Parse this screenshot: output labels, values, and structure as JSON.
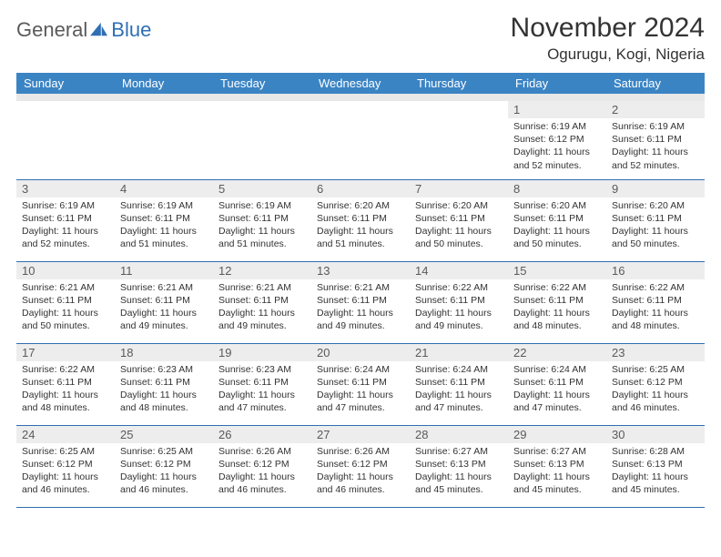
{
  "logo": {
    "word1": "General",
    "word2": "Blue",
    "accent_color": "#2f6fb3"
  },
  "title": "November 2024",
  "location": "Ogurugu, Kogi, Nigeria",
  "colors": {
    "header_bg": "#3b84c4",
    "header_text": "#ffffff",
    "grid_line": "#2f6fb3",
    "daynum_bg": "#ededed",
    "body_text": "#333333"
  },
  "weekdays": [
    "Sunday",
    "Monday",
    "Tuesday",
    "Wednesday",
    "Thursday",
    "Friday",
    "Saturday"
  ],
  "weeks": [
    [
      null,
      null,
      null,
      null,
      null,
      {
        "n": "1",
        "sr": "6:19 AM",
        "ss": "6:12 PM",
        "dh": "11",
        "dm": "52"
      },
      {
        "n": "2",
        "sr": "6:19 AM",
        "ss": "6:11 PM",
        "dh": "11",
        "dm": "52"
      }
    ],
    [
      {
        "n": "3",
        "sr": "6:19 AM",
        "ss": "6:11 PM",
        "dh": "11",
        "dm": "52"
      },
      {
        "n": "4",
        "sr": "6:19 AM",
        "ss": "6:11 PM",
        "dh": "11",
        "dm": "51"
      },
      {
        "n": "5",
        "sr": "6:19 AM",
        "ss": "6:11 PM",
        "dh": "11",
        "dm": "51"
      },
      {
        "n": "6",
        "sr": "6:20 AM",
        "ss": "6:11 PM",
        "dh": "11",
        "dm": "51"
      },
      {
        "n": "7",
        "sr": "6:20 AM",
        "ss": "6:11 PM",
        "dh": "11",
        "dm": "50"
      },
      {
        "n": "8",
        "sr": "6:20 AM",
        "ss": "6:11 PM",
        "dh": "11",
        "dm": "50"
      },
      {
        "n": "9",
        "sr": "6:20 AM",
        "ss": "6:11 PM",
        "dh": "11",
        "dm": "50"
      }
    ],
    [
      {
        "n": "10",
        "sr": "6:21 AM",
        "ss": "6:11 PM",
        "dh": "11",
        "dm": "50"
      },
      {
        "n": "11",
        "sr": "6:21 AM",
        "ss": "6:11 PM",
        "dh": "11",
        "dm": "49"
      },
      {
        "n": "12",
        "sr": "6:21 AM",
        "ss": "6:11 PM",
        "dh": "11",
        "dm": "49"
      },
      {
        "n": "13",
        "sr": "6:21 AM",
        "ss": "6:11 PM",
        "dh": "11",
        "dm": "49"
      },
      {
        "n": "14",
        "sr": "6:22 AM",
        "ss": "6:11 PM",
        "dh": "11",
        "dm": "49"
      },
      {
        "n": "15",
        "sr": "6:22 AM",
        "ss": "6:11 PM",
        "dh": "11",
        "dm": "48"
      },
      {
        "n": "16",
        "sr": "6:22 AM",
        "ss": "6:11 PM",
        "dh": "11",
        "dm": "48"
      }
    ],
    [
      {
        "n": "17",
        "sr": "6:22 AM",
        "ss": "6:11 PM",
        "dh": "11",
        "dm": "48"
      },
      {
        "n": "18",
        "sr": "6:23 AM",
        "ss": "6:11 PM",
        "dh": "11",
        "dm": "48"
      },
      {
        "n": "19",
        "sr": "6:23 AM",
        "ss": "6:11 PM",
        "dh": "11",
        "dm": "47"
      },
      {
        "n": "20",
        "sr": "6:24 AM",
        "ss": "6:11 PM",
        "dh": "11",
        "dm": "47"
      },
      {
        "n": "21",
        "sr": "6:24 AM",
        "ss": "6:11 PM",
        "dh": "11",
        "dm": "47"
      },
      {
        "n": "22",
        "sr": "6:24 AM",
        "ss": "6:11 PM",
        "dh": "11",
        "dm": "47"
      },
      {
        "n": "23",
        "sr": "6:25 AM",
        "ss": "6:12 PM",
        "dh": "11",
        "dm": "46"
      }
    ],
    [
      {
        "n": "24",
        "sr": "6:25 AM",
        "ss": "6:12 PM",
        "dh": "11",
        "dm": "46"
      },
      {
        "n": "25",
        "sr": "6:25 AM",
        "ss": "6:12 PM",
        "dh": "11",
        "dm": "46"
      },
      {
        "n": "26",
        "sr": "6:26 AM",
        "ss": "6:12 PM",
        "dh": "11",
        "dm": "46"
      },
      {
        "n": "27",
        "sr": "6:26 AM",
        "ss": "6:12 PM",
        "dh": "11",
        "dm": "46"
      },
      {
        "n": "28",
        "sr": "6:27 AM",
        "ss": "6:13 PM",
        "dh": "11",
        "dm": "45"
      },
      {
        "n": "29",
        "sr": "6:27 AM",
        "ss": "6:13 PM",
        "dh": "11",
        "dm": "45"
      },
      {
        "n": "30",
        "sr": "6:28 AM",
        "ss": "6:13 PM",
        "dh": "11",
        "dm": "45"
      }
    ]
  ]
}
